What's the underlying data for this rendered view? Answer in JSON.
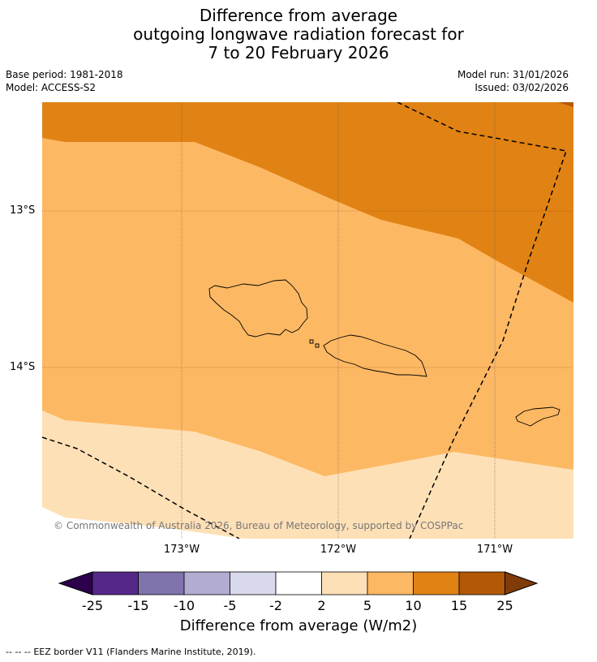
{
  "title": {
    "line1": "Difference from average",
    "line2": "outgoing longwave radiation forecast for",
    "line3": "7 to 20 February 2026"
  },
  "meta": {
    "base_period": "Base period: 1981-2018",
    "model": "Model: ACCESS-S2",
    "model_run": "Model run: 31/01/2026",
    "issued": "Issued: 03/02/2026"
  },
  "map": {
    "lat_labels": [
      "13°S",
      "14°S"
    ],
    "lon_labels": [
      "173°W",
      "172°W",
      "171°W"
    ],
    "copyright": "© Commonwealth of Australia 2026, Bureau of Meteorology, supported by COSPPac",
    "colors": {
      "band_15_25": "#b35806",
      "band_10_15": "#e08214",
      "band_5_10": "#fdb863",
      "band_2_5": "#fee0b6",
      "band_m2_2": "#ffffff"
    }
  },
  "colorbar": {
    "ticks": [
      "-25",
      "-15",
      "-10",
      "-5",
      "-2",
      "2",
      "5",
      "10",
      "15",
      "25"
    ],
    "label": "Difference from average (W/m2)",
    "colors": [
      "#2d004b",
      "#542788",
      "#8073ac",
      "#b2abd2",
      "#d8daeb",
      "#ffffff",
      "#fee0b6",
      "#fdb863",
      "#e08214",
      "#b35806",
      "#7f3b08"
    ]
  },
  "legend": {
    "eez_symbol": "--  --  --",
    "eez_text": "EEZ border V11 (Flanders Marine Institute, 2019)."
  }
}
